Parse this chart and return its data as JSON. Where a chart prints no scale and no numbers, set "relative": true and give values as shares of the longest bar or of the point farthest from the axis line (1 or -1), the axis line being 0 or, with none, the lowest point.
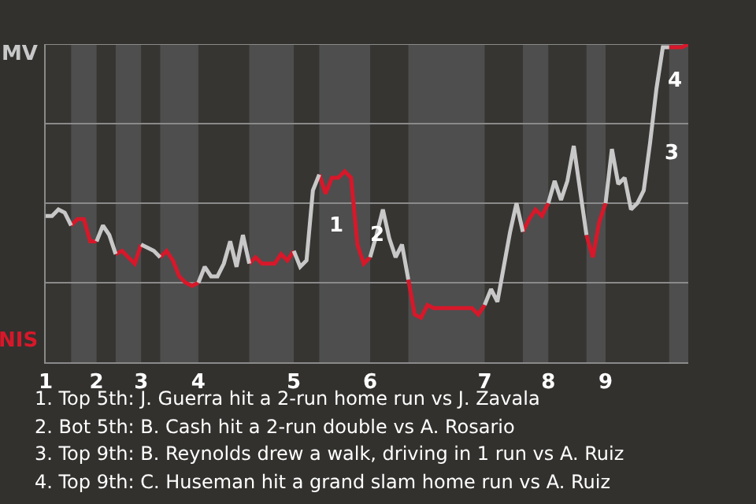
{
  "chart_data": {
    "type": "line",
    "relative": true,
    "categories": [
      "1",
      null,
      null,
      null,
      null,
      null,
      null,
      null,
      "2",
      null,
      null,
      null,
      null,
      null,
      null,
      "3",
      null,
      null,
      null,
      null,
      null,
      null,
      null,
      null,
      "4",
      null,
      null,
      null,
      null,
      null,
      null,
      null,
      null,
      null,
      null,
      null,
      null,
      null,
      null,
      "5",
      null,
      null,
      null,
      null,
      null,
      null,
      null,
      null,
      null,
      null,
      null,
      "6",
      null,
      null,
      null,
      null,
      null,
      null,
      null,
      null,
      null,
      null,
      null,
      null,
      null,
      null,
      null,
      null,
      null,
      "7",
      null,
      null,
      null,
      null,
      null,
      null,
      null,
      null,
      null,
      "8",
      null,
      null,
      null,
      null,
      null,
      null,
      null,
      null,
      "9",
      null,
      null,
      null,
      null,
      null,
      null,
      null,
      null,
      null,
      null,
      null,
      null,
      null
    ],
    "marker": "none",
    "line_style": "solid",
    "series": [
      {
        "color": "#c8c8c8",
        "values": [
          0.46,
          0.46,
          0.48,
          0.47,
          0.43,
          null,
          null,
          null,
          0.38,
          0.43,
          0.4,
          0.34,
          null,
          null,
          null,
          0.37,
          0.36,
          0.35,
          0.33,
          null,
          null,
          null,
          null,
          null,
          0.25,
          0.3,
          0.27,
          0.27,
          0.31,
          0.38,
          0.3,
          0.4,
          0.31,
          null,
          null,
          null,
          null,
          null,
          null,
          0.35,
          0.3,
          0.32,
          0.54,
          0.59,
          null,
          null,
          null,
          null,
          null,
          null,
          null,
          0.33,
          0.4,
          0.48,
          0.39,
          0.33,
          0.37,
          0.26,
          null,
          null,
          null,
          null,
          null,
          null,
          null,
          null,
          null,
          null,
          null,
          0.18,
          0.23,
          0.19,
          0.3,
          0.41,
          0.5,
          0.41,
          null,
          null,
          null,
          0.5,
          0.57,
          0.51,
          0.57,
          0.68,
          0.54,
          0.4,
          null,
          null,
          0.5,
          0.67,
          0.56,
          0.58,
          0.48,
          0.5,
          0.54,
          0.69,
          0.86,
          0.99,
          0.99,
          null,
          null,
          null
        ]
      },
      {
        "color": "#d7182a",
        "values": [
          null,
          null,
          null,
          null,
          0.43,
          0.45,
          0.45,
          0.38,
          0.38,
          null,
          null,
          0.34,
          0.35,
          0.33,
          0.31,
          0.37,
          null,
          null,
          0.33,
          0.35,
          0.32,
          0.27,
          0.25,
          0.24,
          0.25,
          null,
          null,
          null,
          null,
          null,
          null,
          null,
          0.31,
          0.33,
          0.31,
          0.31,
          0.31,
          0.34,
          0.32,
          0.35,
          null,
          null,
          null,
          0.59,
          0.53,
          0.58,
          0.58,
          0.6,
          0.58,
          0.37,
          0.31,
          0.33,
          null,
          null,
          null,
          null,
          null,
          0.26,
          0.15,
          0.14,
          0.18,
          0.17,
          0.17,
          0.17,
          0.17,
          0.17,
          0.17,
          0.17,
          0.15,
          0.18,
          null,
          null,
          null,
          null,
          null,
          0.41,
          0.45,
          0.48,
          0.46,
          0.5,
          null,
          null,
          null,
          null,
          null,
          0.4,
          0.33,
          0.44,
          0.5,
          null,
          null,
          null,
          null,
          null,
          null,
          null,
          null,
          null,
          0.99,
          0.99,
          0.99,
          1.0
        ]
      }
    ],
    "ref_lines": [
      {
        "axis": "y",
        "value": 0.25,
        "color": "#8a8a8a"
      },
      {
        "axis": "y",
        "value": 0.5,
        "color": "#8a8a8a"
      },
      {
        "axis": "y",
        "value": 0.75,
        "color": "#8a8a8a"
      },
      {
        "axis": "y",
        "value": 1,
        "color": "#8a8a8a"
      }
    ],
    "annotations": [
      "MV",
      "NIS",
      "1",
      "2",
      "3",
      "4",
      "1. Top 5th: J. Guerra hit a 2-run home run vs J. Zavala",
      "2. Bot 5th: B. Cash hit a 2-run double vs A. Rosario",
      "3. Top 9th: B. Reynolds drew a walk, driving in 1 run vs A. Ruiz",
      "4. Top 9th: C. Huseman hit a grand slam home run vs A. Ruiz"
    ]
  }
}
